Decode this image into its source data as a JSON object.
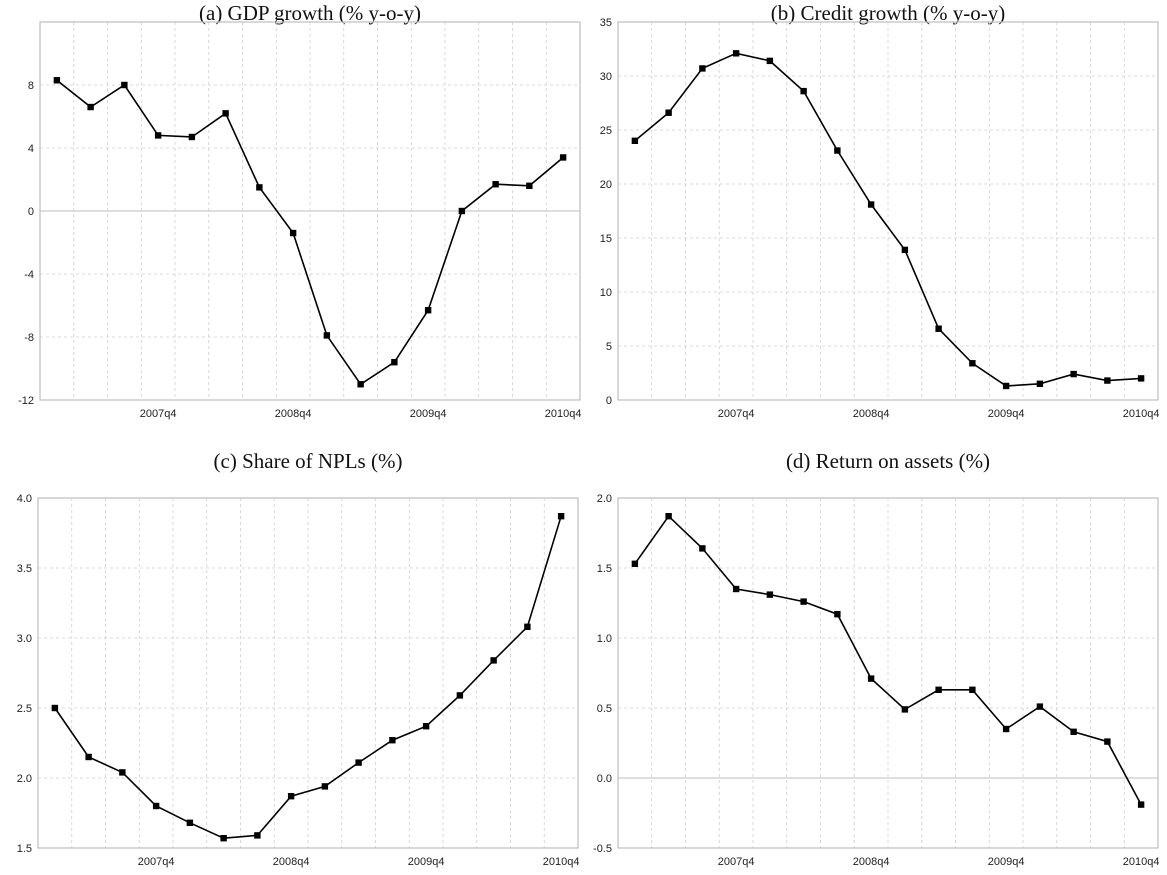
{
  "chart_data": [
    {
      "type": "line",
      "title": "(a) GDP growth (% y-o-y)",
      "categories": [
        null,
        null,
        null,
        "2007q4",
        null,
        null,
        null,
        "2008q4",
        null,
        null,
        null,
        "2009q4",
        null,
        null,
        null,
        "2010q4"
      ],
      "values": [
        8.3,
        6.6,
        8.0,
        4.8,
        4.7,
        6.2,
        1.5,
        -1.4,
        -7.9,
        -11.0,
        -9.6,
        -6.3,
        0.0,
        1.7,
        1.6,
        3.4
      ],
      "color": "#000000",
      "ylim": [
        -12,
        12
      ],
      "yticks": [
        -12,
        -8,
        -4,
        0,
        4,
        8
      ],
      "grid": true
    },
    {
      "type": "line",
      "title": "(b) Credit growth (% y-o-y)",
      "categories": [
        null,
        null,
        null,
        "2007q4",
        null,
        null,
        null,
        "2008q4",
        null,
        null,
        null,
        "2009q4",
        null,
        null,
        null,
        "2010q4"
      ],
      "values": [
        24.0,
        26.6,
        30.7,
        32.1,
        31.4,
        28.6,
        23.1,
        18.1,
        13.9,
        6.6,
        3.4,
        1.3,
        1.5,
        2.4,
        1.8,
        2.0
      ],
      "color": "#000000",
      "ylim": [
        0,
        35
      ],
      "yticks": [
        0,
        5,
        10,
        15,
        20,
        25,
        30,
        35
      ],
      "grid": true
    },
    {
      "type": "line",
      "title": "(c) Share of NPLs (%)",
      "categories": [
        null,
        null,
        null,
        "2007q4",
        null,
        null,
        null,
        "2008q4",
        null,
        null,
        null,
        "2009q4",
        null,
        null,
        null,
        "2010q4"
      ],
      "values": [
        2.5,
        2.15,
        2.04,
        1.8,
        1.68,
        1.57,
        1.59,
        1.87,
        1.94,
        2.11,
        2.27,
        2.37,
        2.59,
        2.84,
        3.08,
        3.87
      ],
      "color": "#000000",
      "ylim": [
        1.5,
        4.0
      ],
      "yticks": [
        1.5,
        {
          "value": 2,
          "label": "2.0"
        },
        2.5,
        {
          "value": 3,
          "label": "3.0"
        },
        3.5,
        {
          "value": 4,
          "label": "4.0"
        }
      ],
      "grid": true
    },
    {
      "type": "line",
      "title": "(d) Return on assets (%)",
      "categories": [
        null,
        null,
        null,
        "2007q4",
        null,
        null,
        null,
        "2008q4",
        null,
        null,
        null,
        "2009q4",
        null,
        null,
        null,
        "2010q4"
      ],
      "values": [
        1.53,
        1.87,
        1.64,
        1.35,
        1.31,
        1.26,
        1.17,
        0.71,
        0.49,
        0.63,
        0.63,
        0.35,
        0.51,
        0.33,
        0.26,
        -0.19
      ],
      "color": "#000000",
      "ylim": [
        -0.5,
        2.0
      ],
      "yticks": [
        -0.5,
        {
          "value": 0,
          "label": "0.0"
        },
        0.5,
        {
          "value": 1,
          "label": "1.0"
        },
        1.5,
        {
          "value": 2,
          "label": "2.0"
        }
      ],
      "grid": true
    }
  ]
}
